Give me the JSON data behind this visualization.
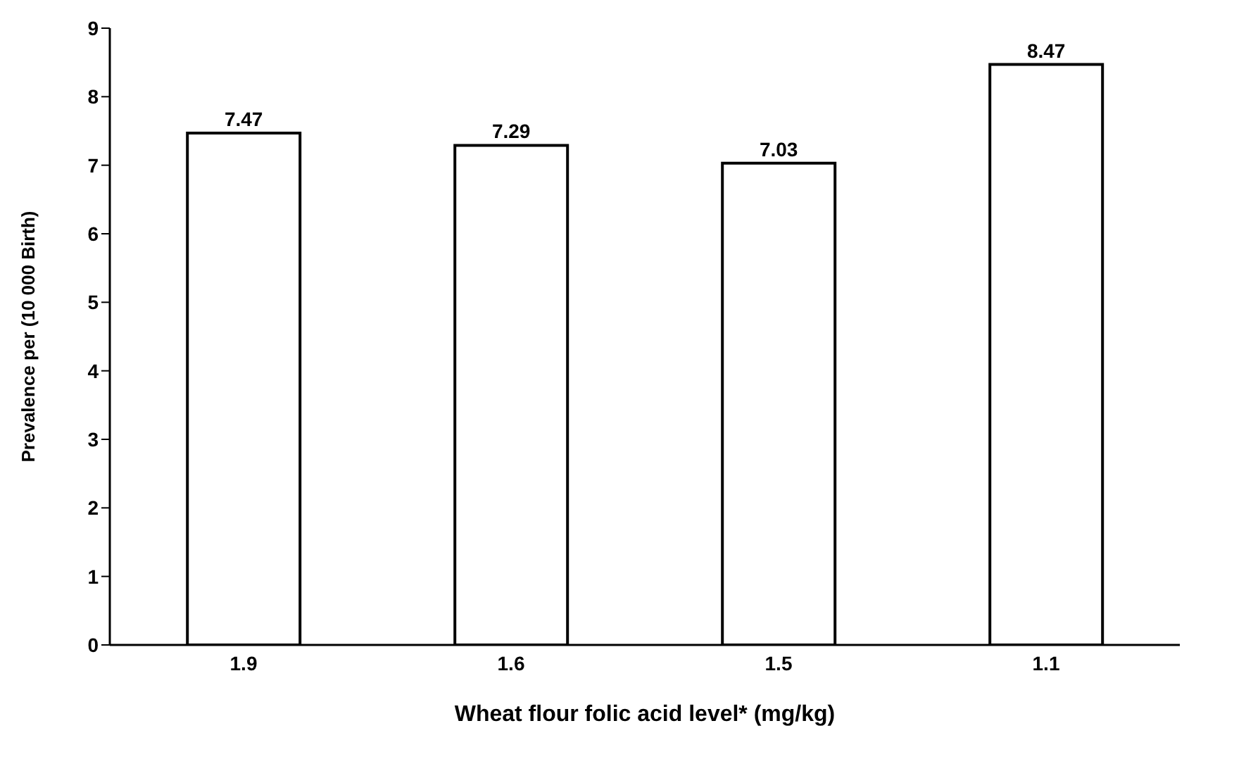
{
  "chart_data": {
    "type": "bar",
    "xlabel": "Wheat flour folic acid level* (mg/kg)",
    "ylabel": "Prevalence per (10 000 Birth)",
    "categories": [
      "1.9",
      "1.6",
      "1.5",
      "1.1"
    ],
    "values": [
      7.47,
      7.29,
      7.03,
      8.47
    ],
    "color": "#ffffff",
    "ylim": [
      0,
      9
    ],
    "yticks": [
      0,
      1,
      2,
      3,
      4,
      5,
      6,
      7,
      8,
      9
    ],
    "grid": false,
    "data_labels": true
  }
}
